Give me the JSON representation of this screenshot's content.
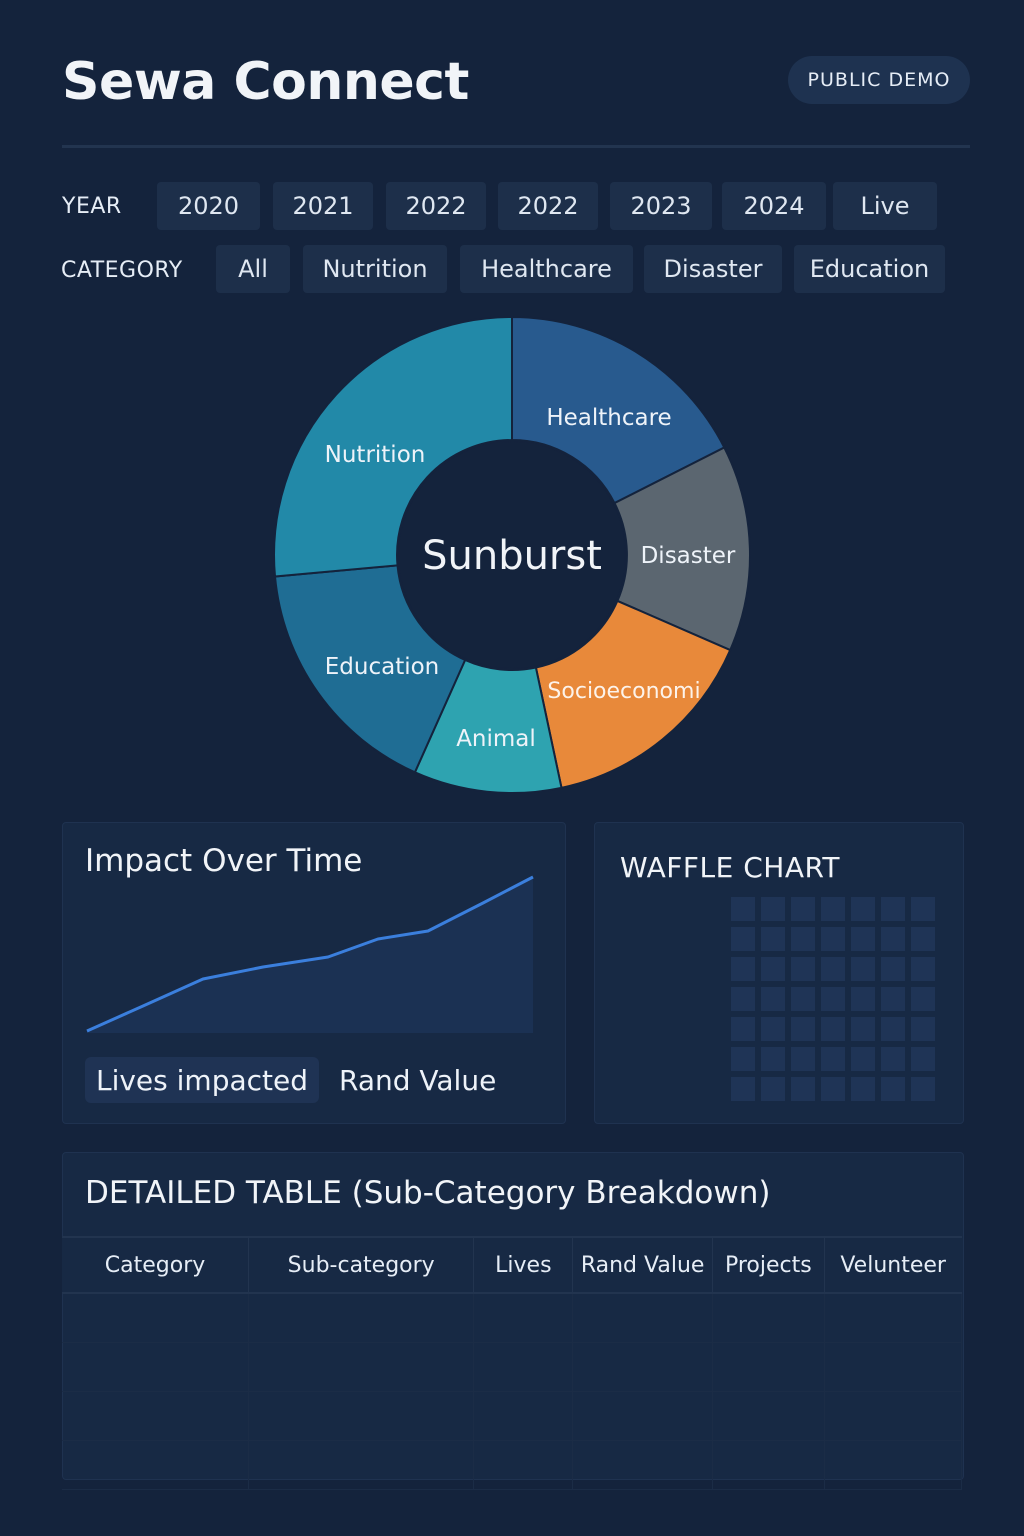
{
  "header": {
    "title": "Sewa Connect",
    "badge": "PUBLIC DEMO"
  },
  "filters": {
    "year_label": "YEAR",
    "years": [
      "2020",
      "2021",
      "2022",
      "2022",
      "2023",
      "2024",
      "Live"
    ],
    "category_label": "CATEGORY",
    "categories": [
      "All",
      "Nutrition",
      "Healthcare",
      "Disaster",
      "Education"
    ]
  },
  "sunburst": {
    "center_label": "Sunburst",
    "segments": [
      {
        "label": "Healthcare",
        "color": "#285a8e"
      },
      {
        "label": "Disaster",
        "color": "#5b6670"
      },
      {
        "label": "Socioeconomi",
        "color": "#e8893a"
      },
      {
        "label": "Animal",
        "color": "#2ea3b0"
      },
      {
        "label": "Education",
        "color": "#1f6d94"
      },
      {
        "label": "Nutrition",
        "color": "#2289a8"
      }
    ]
  },
  "impact_panel": {
    "title": "Impact Over Time",
    "legend": [
      "Lives impacted",
      "Rand Value"
    ],
    "line_color": "#3b7fdd"
  },
  "waffle_panel": {
    "title": "WAFFLE CHART",
    "rows": 7,
    "cols": 7
  },
  "table": {
    "title": "DETAILED TABLE (Sub-Category Breakdown)",
    "columns": [
      "Category",
      "Sub-category",
      "Lives",
      "Rand Value",
      "Projects",
      "Veluntеer"
    ],
    "rows": [
      [
        "",
        "",
        "",
        "",
        "",
        ""
      ],
      [
        "",
        "",
        "",
        "",
        "",
        ""
      ],
      [
        "",
        "",
        "",
        "",
        "",
        ""
      ],
      [
        "",
        "",
        "",
        "",
        "",
        ""
      ]
    ]
  },
  "colors": {
    "background": "#14233c",
    "panel": "#172944",
    "chip": "#1d2f4a"
  }
}
